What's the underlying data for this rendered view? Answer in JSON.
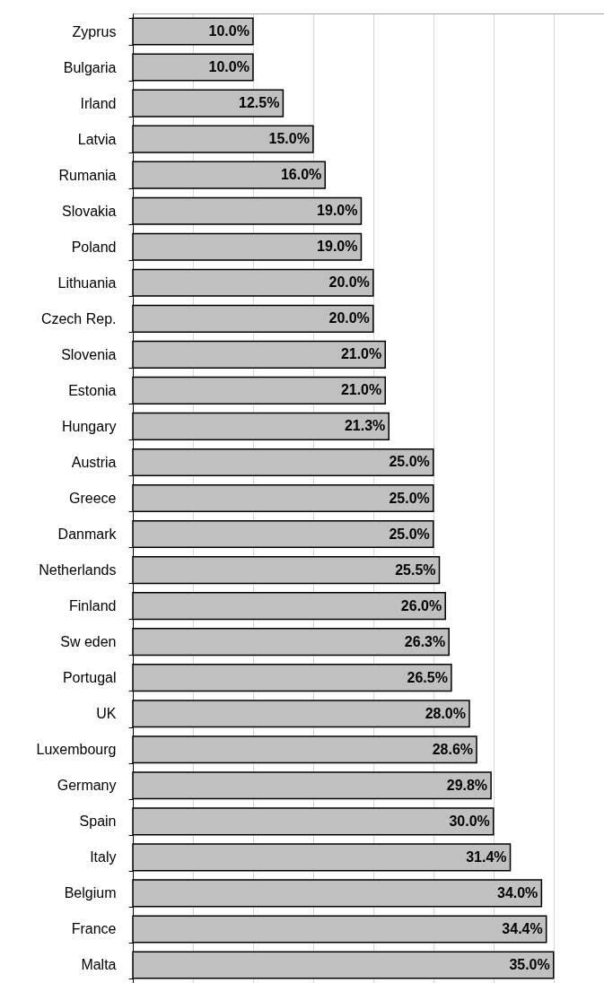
{
  "chart_data": {
    "type": "bar",
    "orientation": "horizontal",
    "categories": [
      "Zyprus",
      "Bulgaria",
      "Irland",
      "Latvia",
      "Rumania",
      "Slovakia",
      "Poland",
      "Lithuania",
      "Czech Rep.",
      "Slovenia",
      "Estonia",
      "Hungary",
      "Austria",
      "Greece",
      "Danmark",
      "Netherlands",
      "Finland",
      "Sw eden",
      "Portugal",
      "UK",
      "Luxembourg",
      "Germany",
      "Spain",
      "Italy",
      "Belgium",
      "France",
      "Malta"
    ],
    "values": [
      10.0,
      10.0,
      12.5,
      15.0,
      16.0,
      19.0,
      19.0,
      20.0,
      20.0,
      21.0,
      21.0,
      21.3,
      25.0,
      25.0,
      25.0,
      25.5,
      26.0,
      26.3,
      26.5,
      28.0,
      28.6,
      29.8,
      30.0,
      31.4,
      34.0,
      34.4,
      35.0
    ],
    "value_labels": [
      "10.0%",
      "10.0%",
      "12.5%",
      "15.0%",
      "16.0%",
      "19.0%",
      "19.0%",
      "20.0%",
      "20.0%",
      "21.0%",
      "21.0%",
      "21.3%",
      "25.0%",
      "25.0%",
      "25.0%",
      "25.5%",
      "26.0%",
      "26.3%",
      "26.5%",
      "28.0%",
      "28.6%",
      "29.8%",
      "30.0%",
      "31.4%",
      "34.0%",
      "34.4%",
      "35.0%"
    ],
    "color": "#c0c0c0",
    "xlim": [
      0,
      39.2
    ],
    "xticks": [
      {
        "value": 5,
        "label": null
      },
      {
        "value": 10,
        "label": null
      },
      {
        "value": 15,
        "label": null
      },
      {
        "value": 20,
        "label": null
      },
      {
        "value": 25,
        "label": null
      },
      {
        "value": 30,
        "label": null
      },
      {
        "value": 35,
        "label": null
      }
    ],
    "grid": "x",
    "tick_labels": "y"
  }
}
